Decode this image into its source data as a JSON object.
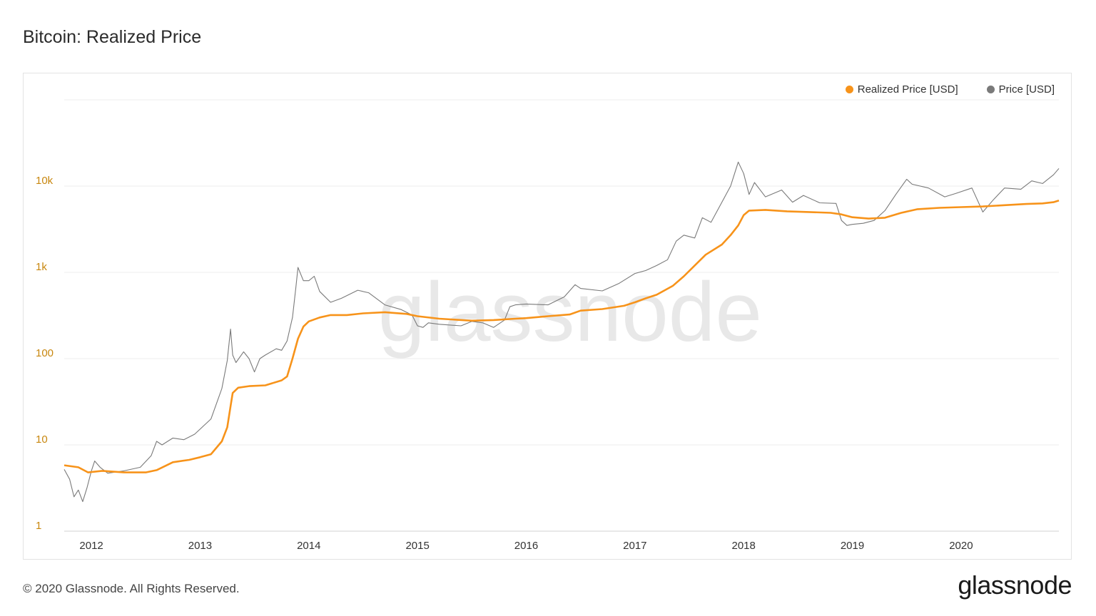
{
  "page": {
    "title": "Bitcoin: Realized Price",
    "copyright": "© 2020 Glassnode. All Rights Reserved.",
    "logo": "glassnode",
    "watermark": "glassnode"
  },
  "legend": [
    {
      "label": "Realized Price [USD]",
      "color": "#f7931a"
    },
    {
      "label": "Price [USD]",
      "color": "#7a7a7a"
    }
  ],
  "chart_data": {
    "type": "line",
    "title": "Bitcoin: Realized Price",
    "y_scale": "log",
    "ylim": [
      1,
      100000
    ],
    "y_ticks": [
      {
        "value": 1,
        "label": "1"
      },
      {
        "value": 10,
        "label": "10"
      },
      {
        "value": 100,
        "label": "100"
      },
      {
        "value": 1000,
        "label": "1k"
      },
      {
        "value": 10000,
        "label": "10k"
      }
    ],
    "x_range": [
      2011.75,
      2020.9
    ],
    "x_ticks": [
      {
        "value": 2012,
        "label": "2012"
      },
      {
        "value": 2013,
        "label": "2013"
      },
      {
        "value": 2014,
        "label": "2014"
      },
      {
        "value": 2015,
        "label": "2015"
      },
      {
        "value": 2016,
        "label": "2016"
      },
      {
        "value": 2017,
        "label": "2017"
      },
      {
        "value": 2018,
        "label": "2018"
      },
      {
        "value": 2019,
        "label": "2019"
      },
      {
        "value": 2020,
        "label": "2020"
      }
    ],
    "grid": true,
    "legend_position": "top-right",
    "series": [
      {
        "name": "Realized Price [USD]",
        "color": "#f7931a",
        "points": [
          [
            2011.75,
            5.8
          ],
          [
            2011.88,
            5.5
          ],
          [
            2011.97,
            4.8
          ],
          [
            2012.1,
            5.0
          ],
          [
            2012.3,
            4.8
          ],
          [
            2012.5,
            4.8
          ],
          [
            2012.6,
            5.1
          ],
          [
            2012.75,
            6.3
          ],
          [
            2012.9,
            6.7
          ],
          [
            2013.0,
            7.2
          ],
          [
            2013.1,
            7.8
          ],
          [
            2013.2,
            11.0
          ],
          [
            2013.25,
            16
          ],
          [
            2013.28,
            28
          ],
          [
            2013.3,
            40
          ],
          [
            2013.35,
            46
          ],
          [
            2013.45,
            48
          ],
          [
            2013.6,
            49
          ],
          [
            2013.75,
            56
          ],
          [
            2013.8,
            62
          ],
          [
            2013.85,
            100
          ],
          [
            2013.9,
            170
          ],
          [
            2013.95,
            235
          ],
          [
            2014.0,
            270
          ],
          [
            2014.1,
            300
          ],
          [
            2014.2,
            320
          ],
          [
            2014.35,
            320
          ],
          [
            2014.5,
            335
          ],
          [
            2014.7,
            345
          ],
          [
            2014.9,
            330
          ],
          [
            2015.0,
            310
          ],
          [
            2015.2,
            290
          ],
          [
            2015.5,
            275
          ],
          [
            2015.7,
            280
          ],
          [
            2015.9,
            290
          ],
          [
            2016.0,
            295
          ],
          [
            2016.2,
            310
          ],
          [
            2016.4,
            325
          ],
          [
            2016.5,
            360
          ],
          [
            2016.7,
            375
          ],
          [
            2016.9,
            410
          ],
          [
            2017.0,
            450
          ],
          [
            2017.1,
            500
          ],
          [
            2017.2,
            550
          ],
          [
            2017.35,
            700
          ],
          [
            2017.45,
            900
          ],
          [
            2017.55,
            1200
          ],
          [
            2017.65,
            1600
          ],
          [
            2017.8,
            2100
          ],
          [
            2017.88,
            2700
          ],
          [
            2017.95,
            3500
          ],
          [
            2018.0,
            4600
          ],
          [
            2018.05,
            5200
          ],
          [
            2018.2,
            5300
          ],
          [
            2018.4,
            5100
          ],
          [
            2018.6,
            5000
          ],
          [
            2018.8,
            4900
          ],
          [
            2018.9,
            4700
          ],
          [
            2019.0,
            4350
          ],
          [
            2019.15,
            4200
          ],
          [
            2019.3,
            4300
          ],
          [
            2019.45,
            4900
          ],
          [
            2019.6,
            5400
          ],
          [
            2019.8,
            5600
          ],
          [
            2020.0,
            5700
          ],
          [
            2020.2,
            5800
          ],
          [
            2020.4,
            6000
          ],
          [
            2020.6,
            6200
          ],
          [
            2020.75,
            6300
          ],
          [
            2020.85,
            6500
          ],
          [
            2020.9,
            6800
          ]
        ]
      },
      {
        "name": "Price [USD]",
        "color": "#7a7a7a",
        "points": [
          [
            2011.75,
            5.2
          ],
          [
            2011.8,
            4.0
          ],
          [
            2011.84,
            2.5
          ],
          [
            2011.88,
            3.0
          ],
          [
            2011.92,
            2.2
          ],
          [
            2011.96,
            3.2
          ],
          [
            2012.0,
            5.0
          ],
          [
            2012.03,
            6.5
          ],
          [
            2012.08,
            5.5
          ],
          [
            2012.15,
            4.7
          ],
          [
            2012.3,
            5.0
          ],
          [
            2012.45,
            5.5
          ],
          [
            2012.55,
            7.5
          ],
          [
            2012.6,
            11
          ],
          [
            2012.65,
            10
          ],
          [
            2012.75,
            12
          ],
          [
            2012.85,
            11.5
          ],
          [
            2012.95,
            13.3
          ],
          [
            2013.1,
            20
          ],
          [
            2013.15,
            30
          ],
          [
            2013.2,
            45
          ],
          [
            2013.25,
            95
          ],
          [
            2013.28,
            220
          ],
          [
            2013.3,
            110
          ],
          [
            2013.33,
            90
          ],
          [
            2013.4,
            120
          ],
          [
            2013.45,
            100
          ],
          [
            2013.5,
            70
          ],
          [
            2013.55,
            100
          ],
          [
            2013.6,
            110
          ],
          [
            2013.7,
            130
          ],
          [
            2013.75,
            125
          ],
          [
            2013.8,
            160
          ],
          [
            2013.85,
            300
          ],
          [
            2013.88,
            650
          ],
          [
            2013.9,
            1140
          ],
          [
            2013.95,
            800
          ],
          [
            2014.0,
            800
          ],
          [
            2014.05,
            900
          ],
          [
            2014.1,
            600
          ],
          [
            2014.2,
            450
          ],
          [
            2014.3,
            500
          ],
          [
            2014.45,
            620
          ],
          [
            2014.55,
            580
          ],
          [
            2014.7,
            420
          ],
          [
            2014.85,
            370
          ],
          [
            2014.95,
            320
          ],
          [
            2015.0,
            240
          ],
          [
            2015.05,
            230
          ],
          [
            2015.1,
            260
          ],
          [
            2015.2,
            250
          ],
          [
            2015.4,
            240
          ],
          [
            2015.5,
            270
          ],
          [
            2015.6,
            260
          ],
          [
            2015.7,
            230
          ],
          [
            2015.8,
            280
          ],
          [
            2015.85,
            400
          ],
          [
            2015.9,
            420
          ],
          [
            2016.0,
            430
          ],
          [
            2016.2,
            420
          ],
          [
            2016.35,
            520
          ],
          [
            2016.45,
            720
          ],
          [
            2016.5,
            650
          ],
          [
            2016.7,
            610
          ],
          [
            2016.85,
            740
          ],
          [
            2017.0,
            970
          ],
          [
            2017.1,
            1050
          ],
          [
            2017.2,
            1200
          ],
          [
            2017.3,
            1400
          ],
          [
            2017.38,
            2300
          ],
          [
            2017.45,
            2700
          ],
          [
            2017.55,
            2500
          ],
          [
            2017.62,
            4300
          ],
          [
            2017.7,
            3800
          ],
          [
            2017.8,
            6500
          ],
          [
            2017.88,
            10000
          ],
          [
            2017.95,
            19000
          ],
          [
            2018.0,
            14000
          ],
          [
            2018.05,
            8000
          ],
          [
            2018.1,
            11000
          ],
          [
            2018.2,
            7500
          ],
          [
            2018.35,
            9000
          ],
          [
            2018.45,
            6500
          ],
          [
            2018.55,
            7800
          ],
          [
            2018.7,
            6400
          ],
          [
            2018.85,
            6300
          ],
          [
            2018.9,
            4000
          ],
          [
            2018.95,
            3500
          ],
          [
            2019.0,
            3600
          ],
          [
            2019.1,
            3700
          ],
          [
            2019.2,
            4000
          ],
          [
            2019.3,
            5200
          ],
          [
            2019.4,
            8000
          ],
          [
            2019.5,
            12000
          ],
          [
            2019.55,
            10500
          ],
          [
            2019.7,
            9500
          ],
          [
            2019.85,
            7500
          ],
          [
            2019.95,
            8200
          ],
          [
            2020.1,
            9500
          ],
          [
            2020.2,
            5000
          ],
          [
            2020.3,
            7000
          ],
          [
            2020.4,
            9500
          ],
          [
            2020.55,
            9200
          ],
          [
            2020.65,
            11500
          ],
          [
            2020.75,
            10700
          ],
          [
            2020.85,
            13500
          ],
          [
            2020.9,
            16000
          ]
        ]
      }
    ]
  }
}
